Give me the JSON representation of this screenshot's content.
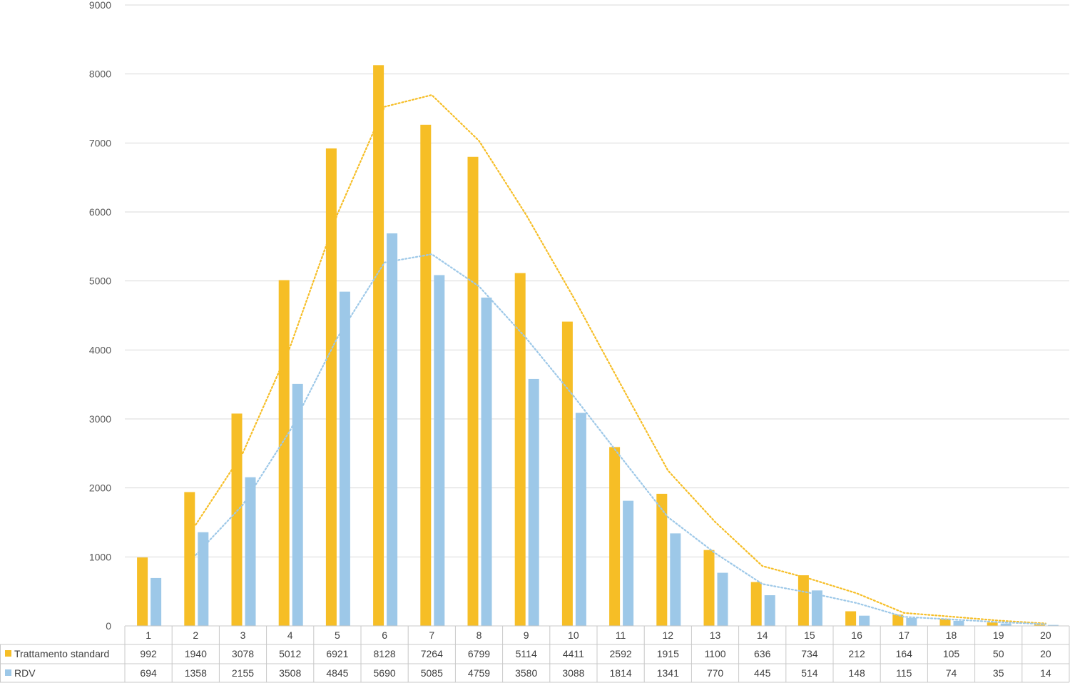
{
  "chart_data": {
    "type": "bar",
    "categories": [
      "1",
      "2",
      "3",
      "4",
      "5",
      "6",
      "7",
      "8",
      "9",
      "10",
      "11",
      "12",
      "13",
      "14",
      "15",
      "16",
      "17",
      "18",
      "19",
      "20"
    ],
    "series": [
      {
        "name": "Trattamento standard",
        "color": "#F6BE26",
        "values": [
          992,
          1940,
          3078,
          5012,
          6921,
          8128,
          7264,
          6799,
          5114,
          4411,
          2592,
          1915,
          1100,
          636,
          734,
          212,
          164,
          105,
          50,
          20
        ]
      },
      {
        "name": "RDV",
        "color": "#9DC8E8",
        "values": [
          694,
          1358,
          2155,
          3508,
          4845,
          5690,
          5085,
          4759,
          3580,
          3088,
          1814,
          1341,
          770,
          445,
          514,
          148,
          115,
          74,
          35,
          14
        ]
      }
    ],
    "trendlines": "2-period moving average (dotted)",
    "ylim": [
      0,
      9000
    ],
    "yticks": [
      "0",
      "1000",
      "2000",
      "3000",
      "4000",
      "5000",
      "6000",
      "7000",
      "8000",
      "9000"
    ],
    "grid": true,
    "legend": "data-table"
  }
}
